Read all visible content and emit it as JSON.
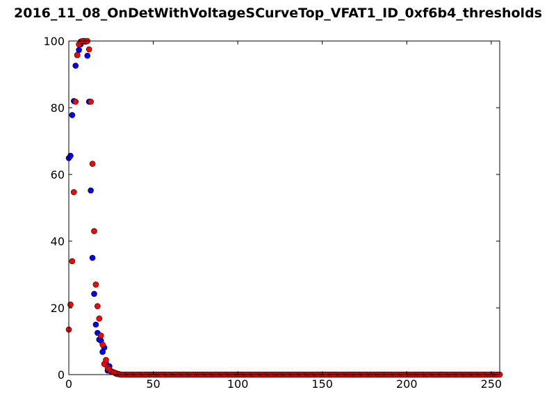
{
  "chart_data": {
    "type": "scatter",
    "title": "2016_11_08_OnDetWithVoltageSCurveTop_VFAT1_ID_0xf6b4_thresholds",
    "xlabel": "",
    "ylabel": "",
    "xlim": [
      0,
      255
    ],
    "ylim": [
      0,
      100
    ],
    "x_ticks": [
      "0",
      "50",
      "100",
      "150",
      "200",
      "250"
    ],
    "y_ticks": [
      "0",
      "20",
      "40",
      "60",
      "80",
      "100"
    ],
    "grid": false,
    "legend": "none",
    "series": [
      {
        "color": "#0000ff",
        "points": [
          [
            0,
            64.9
          ],
          [
            1,
            65.6
          ],
          [
            2,
            77.8
          ],
          [
            3,
            82.0
          ],
          [
            4,
            92.6
          ],
          [
            5,
            95.8
          ],
          [
            6,
            97.3
          ],
          [
            7,
            99.0
          ],
          [
            8,
            99.8
          ],
          [
            9,
            100.0
          ],
          [
            10,
            99.8
          ],
          [
            11,
            95.6
          ],
          [
            12,
            81.8
          ],
          [
            13,
            55.2
          ],
          [
            14,
            35.0
          ],
          [
            15,
            24.2
          ],
          [
            16,
            15.0
          ],
          [
            17,
            12.5
          ],
          [
            18,
            10.5
          ],
          [
            19,
            10.2
          ],
          [
            20,
            6.8
          ],
          [
            21,
            8.1
          ],
          [
            22,
            3.5
          ],
          [
            23,
            1.2
          ],
          [
            24,
            2.5
          ],
          [
            25,
            1.0
          ],
          [
            26,
            0.8
          ],
          [
            27,
            0.6
          ],
          [
            28,
            0.3
          ],
          [
            29,
            0.2
          ],
          [
            30,
            0.1
          ]
        ],
        "zero_tail": [
          31,
          255
        ]
      },
      {
        "color": "#ff0000",
        "points": [
          [
            0,
            13.5
          ],
          [
            1,
            21.0
          ],
          [
            2,
            34.0
          ],
          [
            3,
            54.7
          ],
          [
            4,
            81.8
          ],
          [
            5,
            95.8
          ],
          [
            6,
            99.0
          ],
          [
            7,
            99.8
          ],
          [
            8,
            100.0
          ],
          [
            9,
            100.0
          ],
          [
            10,
            100.0
          ],
          [
            11,
            100.0
          ],
          [
            12,
            97.5
          ],
          [
            13,
            81.8
          ],
          [
            14,
            63.2
          ],
          [
            15,
            43.0
          ],
          [
            16,
            27.0
          ],
          [
            17,
            20.5
          ],
          [
            18,
            16.8
          ],
          [
            19,
            11.7
          ],
          [
            20,
            9.0
          ],
          [
            21,
            3.2
          ],
          [
            22,
            4.4
          ],
          [
            23,
            2.0
          ],
          [
            24,
            1.6
          ],
          [
            25,
            0.9
          ],
          [
            26,
            0.8
          ],
          [
            27,
            0.6
          ],
          [
            28,
            0.4
          ],
          [
            29,
            0.2
          ],
          [
            30,
            0.1
          ]
        ],
        "zero_tail": [
          31,
          255
        ]
      }
    ]
  }
}
